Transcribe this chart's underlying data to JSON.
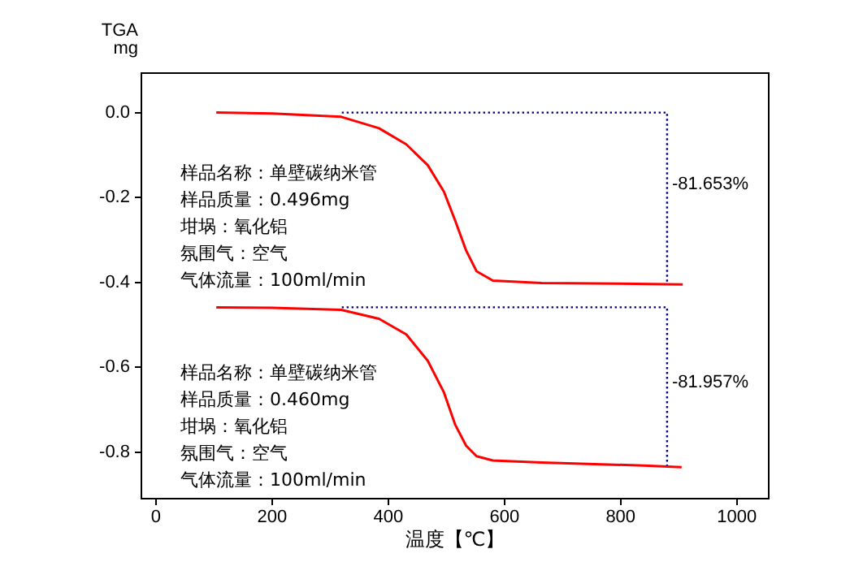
{
  "chart_data": {
    "type": "line",
    "xlabel": "温度【℃】",
    "ylabel": "TGA\nmg",
    "xlim": [
      -25,
      1055
    ],
    "ylim": [
      -0.91,
      0.093
    ],
    "xticks": [
      0,
      200,
      400,
      600,
      800,
      1000
    ],
    "yticks": [
      {
        "value": 0,
        "label": "0.0"
      },
      {
        "value": -0.2,
        "label": "-0.2"
      },
      {
        "value": -0.4,
        "label": "-0.4"
      },
      {
        "value": -0.6,
        "label": "-0.6"
      },
      {
        "value": -0.8,
        "label": "-0.8"
      }
    ],
    "marker": "none",
    "legend": false,
    "series": [
      {
        "color": "#ff0000",
        "line_style": "solid",
        "x": [
          104,
          200,
          319,
          384,
          431,
          468,
          496,
          515,
          534,
          552,
          580,
          664,
          800,
          907
        ],
        "values": [
          0,
          -0.002,
          -0.01,
          -0.037,
          -0.075,
          -0.124,
          -0.187,
          -0.254,
          -0.325,
          -0.374,
          -0.396,
          -0.402,
          -0.403,
          -0.405
        ]
      },
      {
        "color": "#ff0000",
        "line_style": "solid",
        "x": [
          104,
          200,
          319,
          384,
          431,
          468,
          496,
          515,
          534,
          552,
          580,
          664,
          840,
          905
        ],
        "values": [
          -0.459,
          -0.46,
          -0.465,
          -0.486,
          -0.523,
          -0.585,
          -0.66,
          -0.735,
          -0.785,
          -0.81,
          -0.82,
          -0.825,
          -0.832,
          -0.836
        ]
      },
      {
        "color": "#000080",
        "line_style": "dotted",
        "x": [
          320,
          880,
          880
        ],
        "values": [
          0,
          0,
          -0.405
        ]
      },
      {
        "color": "#000080",
        "line_style": "dotted",
        "x": [
          320,
          880,
          880
        ],
        "values": [
          -0.459,
          -0.459,
          -0.836
        ]
      }
    ],
    "annotations": [
      "样品名称：单壁碳纳米管",
      "样品质量：0.496mg",
      "坩埚：氧化铝",
      "氛围气：空气",
      "气体流量：100ml/min",
      "样品名称：单壁碳纳米管",
      "样品质量：0.460mg",
      "坩埚：氧化铝",
      "氛围气：空气",
      "气体流量：100ml/min",
      {
        "text": "-81.653%",
        "x": 880,
        "y": -0.17
      },
      {
        "text": "-81.957%",
        "x": 880,
        "y": -0.636
      }
    ]
  }
}
